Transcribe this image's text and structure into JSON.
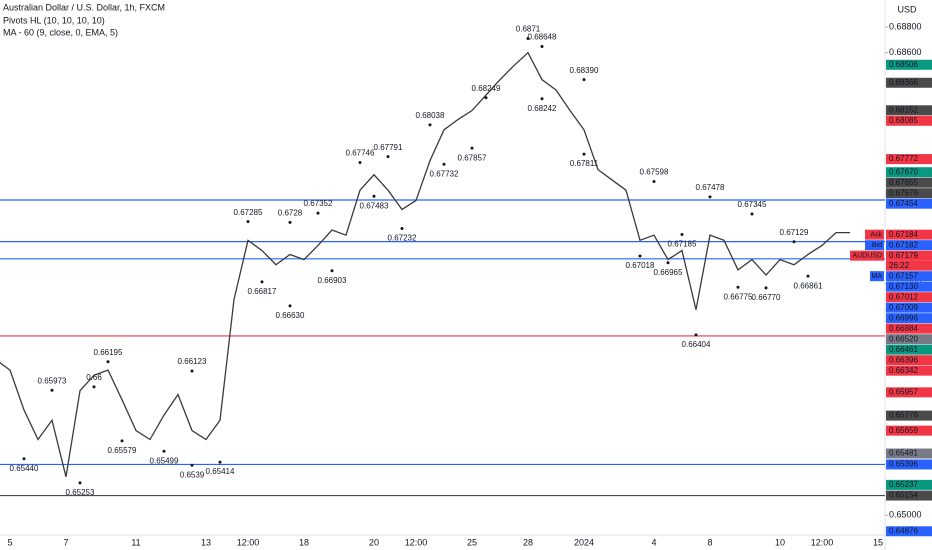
{
  "chart_data": {
    "type": "line",
    "title": "Australian Dollar / U.S. Dollar, 1h, FXCM",
    "indicators": [
      "Pivots HL (10, 10, 10, 10)",
      "MA - 60 (9, close, 0, EMA, 5)"
    ],
    "currency": "USD",
    "categories": [
      null,
      "5",
      null,
      null,
      null,
      "7",
      null,
      null,
      null,
      null,
      "11",
      null,
      null,
      null,
      null,
      "13",
      null,
      null,
      "12:00",
      null,
      null,
      null,
      "18",
      null,
      null,
      null,
      null,
      "20",
      null,
      null,
      "12:00",
      null,
      null,
      null,
      "25",
      null,
      null,
      null,
      "28",
      null,
      null,
      null,
      "2024",
      null,
      null,
      null,
      null,
      "4",
      null,
      null,
      null,
      "8",
      null,
      null,
      null,
      null,
      "10",
      null,
      null,
      "12:00",
      null,
      null,
      null,
      "15"
    ],
    "ylim": [
      0.64847,
      0.6901
    ],
    "yticks": [
      {
        "value": 0.688,
        "label": "0.68800"
      },
      {
        "value": 0.686,
        "label": "0.68600"
      },
      {
        "value": 0.668,
        "label": "0.66800"
      },
      {
        "value": 0.666,
        "label": "0.66600"
      },
      {
        "value": 0.65,
        "label": "0.65000"
      }
    ],
    "grid": false,
    "series": [
      {
        "name": "price",
        "color": "#3a3a3a",
        "values": [
          0.6621,
          0.6613,
          0.6582,
          0.6559,
          0.6574,
          0.653,
          0.6597,
          0.6609,
          0.6613,
          0.659,
          0.6566,
          0.6559,
          0.6578,
          0.6594,
          0.6566,
          0.6559,
          0.6574,
          0.6668,
          0.6714,
          0.6706,
          0.6695,
          0.6703,
          0.6699,
          0.671,
          0.6722,
          0.6718,
          0.6753,
          0.6765,
          0.6753,
          0.6738,
          0.6745,
          0.6776,
          0.68,
          0.6808,
          0.6815,
          0.6827,
          0.6839,
          0.685,
          0.686,
          0.6839,
          0.6831,
          0.6815,
          0.68,
          0.6769,
          0.6761,
          0.6753,
          0.6714,
          0.6718,
          0.6699,
          0.6706,
          0.666,
          0.6718,
          0.6714,
          0.6691,
          0.6699,
          0.6687,
          0.6699,
          0.6695,
          0.6703,
          0.671,
          0.672,
          0.672,
          null,
          null
        ]
      },
      {
        "name": "pivot highs",
        "color": "#131722",
        "values": [
          null,
          null,
          null,
          null,
          0.65973,
          null,
          null,
          0.66,
          0.66195,
          null,
          null,
          null,
          null,
          null,
          0.66123,
          null,
          null,
          null,
          0.67285,
          null,
          null,
          0.6728,
          null,
          0.67352,
          null,
          null,
          0.67746,
          null,
          0.67791,
          null,
          null,
          0.68038,
          null,
          null,
          null,
          0.68249,
          null,
          null,
          0.6871,
          0.68648,
          null,
          null,
          0.6839,
          null,
          null,
          null,
          null,
          0.67598,
          null,
          null,
          null,
          0.67478,
          null,
          null,
          0.67345,
          null,
          null,
          0.67129,
          null,
          null,
          null,
          null,
          null,
          null
        ],
        "value_labels": [
          null,
          null,
          null,
          null,
          "0.65973",
          null,
          null,
          "0.66",
          "0.66195",
          null,
          null,
          null,
          null,
          null,
          "0.66123",
          null,
          null,
          null,
          "0.67285",
          null,
          null,
          "0.6728",
          null,
          "0.67352",
          null,
          null,
          "0.67746",
          null,
          "0.67791",
          null,
          null,
          "0.68038",
          null,
          null,
          null,
          "0.68249",
          null,
          null,
          "0.6871",
          "0.68648",
          null,
          null,
          "0.68390",
          null,
          null,
          null,
          null,
          "0.67598",
          null,
          null,
          null,
          "0.67478",
          null,
          null,
          "0.67345",
          null,
          null,
          "0.67129",
          null,
          null,
          null,
          null,
          null,
          null
        ]
      },
      {
        "name": "pivot lows",
        "color": "#131722",
        "values": [
          null,
          null,
          0.6544,
          null,
          null,
          null,
          0.65253,
          null,
          null,
          0.65579,
          null,
          null,
          0.65499,
          null,
          0.6539,
          null,
          0.65414,
          null,
          null,
          0.66817,
          null,
          0.6663,
          null,
          null,
          0.66903,
          null,
          null,
          0.67483,
          null,
          0.67232,
          null,
          null,
          0.67732,
          null,
          0.67857,
          null,
          null,
          null,
          null,
          0.68242,
          null,
          null,
          0.67811,
          null,
          null,
          null,
          0.67018,
          null,
          0.66965,
          0.67185,
          0.66404,
          null,
          null,
          0.66775,
          null,
          0.6677,
          null,
          null,
          0.66861,
          null,
          null,
          null,
          null,
          null
        ],
        "value_labels": [
          null,
          null,
          "0.65440",
          null,
          null,
          null,
          "0.65253",
          null,
          null,
          "0.65579",
          null,
          null,
          "0.65499",
          null,
          "0.6539",
          null,
          "0.65414",
          null,
          null,
          "0.66817",
          null,
          "0.66630",
          null,
          null,
          "0.66903",
          null,
          null,
          "0.67483",
          null,
          "0.67232",
          null,
          null,
          "0.67732",
          null,
          "0.67857",
          null,
          null,
          null,
          null,
          "0.68242",
          null,
          null,
          "0.67811",
          null,
          null,
          null,
          "0.67018",
          null,
          "0.66965",
          "0.67185",
          "0.66404",
          null,
          null,
          "0.66775",
          null,
          "0.66770",
          null,
          null,
          "0.66861",
          null,
          null,
          null,
          null,
          null
        ]
      }
    ],
    "price_labels": [
      {
        "label": "0.68506",
        "value": 0.68506,
        "color": "#089981"
      },
      {
        "label": "0.68366",
        "value": 0.68366,
        "color": "#4a4a4a"
      },
      {
        "label": "0.68152",
        "value": 0.68152,
        "color": "#4a4a4a"
      },
      {
        "label": "0.68085",
        "value": 0.68085,
        "color": "#f23645"
      },
      {
        "label": "0.67772",
        "value": 0.67772,
        "color": "#f23645"
      },
      {
        "label": "0.67670",
        "value": 0.6767,
        "color": "#089981"
      },
      {
        "label": "0.67655",
        "value": 0.67655,
        "color": "#4a4a4a"
      },
      {
        "label": "0.67576",
        "value": 0.67576,
        "color": "#4a4a4a"
      },
      {
        "label": "0.67454",
        "value": 0.67454,
        "color": "#2962ff",
        "line": true
      },
      {
        "label": "0.67184",
        "value": 0.67184,
        "color": "#f23645",
        "tag": "Ask"
      },
      {
        "label": "0.67182",
        "value": 0.67182,
        "color": "#2962ff",
        "tag": "Bid"
      },
      {
        "label": "0.67179",
        "value": 0.67179,
        "color": "#f23645",
        "tag": "AUDUSD",
        "sub": "26:22"
      },
      {
        "label": "0.67157",
        "value": 0.67157,
        "color": "#2962ff",
        "tag": "MA"
      },
      {
        "label": "0.67130",
        "value": 0.6713,
        "color": "#2962ff",
        "line": true
      },
      {
        "label": "0.67012",
        "value": 0.67012,
        "color": "#f23645"
      },
      {
        "label": "0.67009",
        "value": 0.67009,
        "color": "#2962ff"
      },
      {
        "label": "0.66996",
        "value": 0.66996,
        "color": "#2962ff",
        "line": true
      },
      {
        "label": "0.66884",
        "value": 0.66884,
        "color": "#f23645"
      },
      {
        "label": "0.66520",
        "value": 0.6652,
        "color": "#787b86"
      },
      {
        "label": "0.66461",
        "value": 0.66461,
        "color": "#089981"
      },
      {
        "label": "0.66396",
        "value": 0.66396,
        "color": "#f23645",
        "line": true
      },
      {
        "label": "0.66342",
        "value": 0.66342,
        "color": "#f23645"
      },
      {
        "label": "0.65957",
        "value": 0.65957,
        "color": "#f23645"
      },
      {
        "label": "0.65776",
        "value": 0.65776,
        "color": "#4a4a4a"
      },
      {
        "label": "0.65659",
        "value": 0.65659,
        "color": "#f23645"
      },
      {
        "label": "0.65481",
        "value": 0.65481,
        "color": "#787b86"
      },
      {
        "label": "0.65396",
        "value": 0.65396,
        "color": "#2962ff",
        "line": true
      },
      {
        "label": "0.65237",
        "value": 0.65237,
        "color": "#089981"
      },
      {
        "label": "0.65154",
        "value": 0.65154,
        "color": "#4a4a4a",
        "line": true
      },
      {
        "label": "0.64876",
        "value": 0.64876,
        "color": "#2962ff"
      }
    ]
  }
}
